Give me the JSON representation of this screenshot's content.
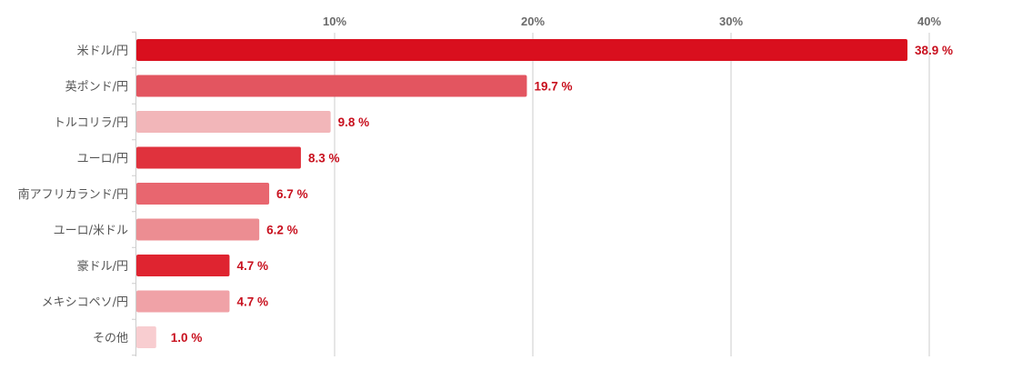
{
  "chart_data": {
    "type": "bar",
    "orientation": "horizontal",
    "categories": [
      "米ドル/円",
      "英ポンド/円",
      "トルコリラ/円",
      "ユーロ/円",
      "南アフリカランド/円",
      "ユーロ/米ドル",
      "豪ドル/円",
      "メキシコペソ/円",
      "その他"
    ],
    "values": [
      38.9,
      19.7,
      9.8,
      8.3,
      6.7,
      6.2,
      4.7,
      4.7,
      1.0
    ],
    "value_labels": [
      "38.9 %",
      "19.7 %",
      "9.8 %",
      "8.3 %",
      "6.7 %",
      "6.2 %",
      "4.7 %",
      "4.7 %",
      "1.0 %"
    ],
    "bar_colors": [
      "#d90f1e",
      "#e35560",
      "#f2b6b9",
      "#e0323d",
      "#e8666f",
      "#ec8d92",
      "#df2430",
      "#f0a2a7",
      "#f8cdd0"
    ],
    "ticks": [
      10,
      20,
      30,
      40
    ],
    "tick_labels": [
      "10%",
      "20%",
      "30%",
      "40%"
    ],
    "xlim": [
      0,
      45
    ],
    "x_axis_position": "top",
    "grid": true,
    "legend": "none",
    "value_label_color": "#c8101e"
  }
}
